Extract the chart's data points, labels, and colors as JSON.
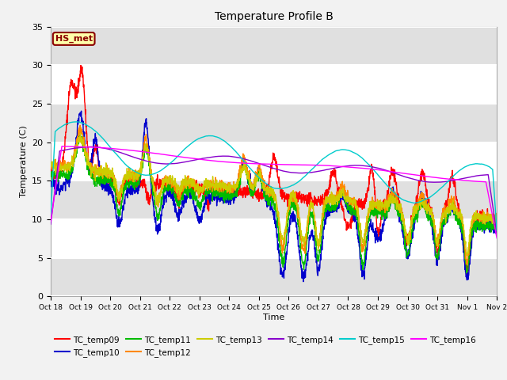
{
  "title": "Temperature Profile B",
  "xlabel": "Time",
  "ylabel": "Temperature (C)",
  "ylim": [
    0,
    35
  ],
  "xlim_days": 15,
  "background_color": "#f2f2f2",
  "plot_bg_color": "#ffffff",
  "gray_band_color": "#e0e0e0",
  "annotation_text": "HS_met",
  "annotation_bg": "#ffffaa",
  "annotation_border": "#8B0000",
  "series_colors": {
    "TC_temp09": "#ff0000",
    "TC_temp10": "#0000cc",
    "TC_temp11": "#00bb00",
    "TC_temp12": "#ff8800",
    "TC_temp13": "#cccc00",
    "TC_temp14": "#8800cc",
    "TC_temp15": "#00cccc",
    "TC_temp16": "#ff00ff"
  },
  "xtick_labels": [
    "Oct 18",
    "Oct 19",
    "Oct 20",
    "Oct 21",
    "Oct 22",
    "Oct 23",
    "Oct 24",
    "Oct 25",
    "Oct 26",
    "Oct 27",
    "Oct 28",
    "Oct 29",
    "Oct 30",
    "Oct 31",
    "Nov 1",
    "Nov 2"
  ],
  "ytick_positions": [
    0,
    5,
    10,
    15,
    20,
    25,
    30,
    35
  ],
  "legend_entries": [
    "TC_temp09",
    "TC_temp10",
    "TC_temp11",
    "TC_temp12",
    "TC_temp13",
    "TC_temp14",
    "TC_temp15",
    "TC_temp16"
  ]
}
